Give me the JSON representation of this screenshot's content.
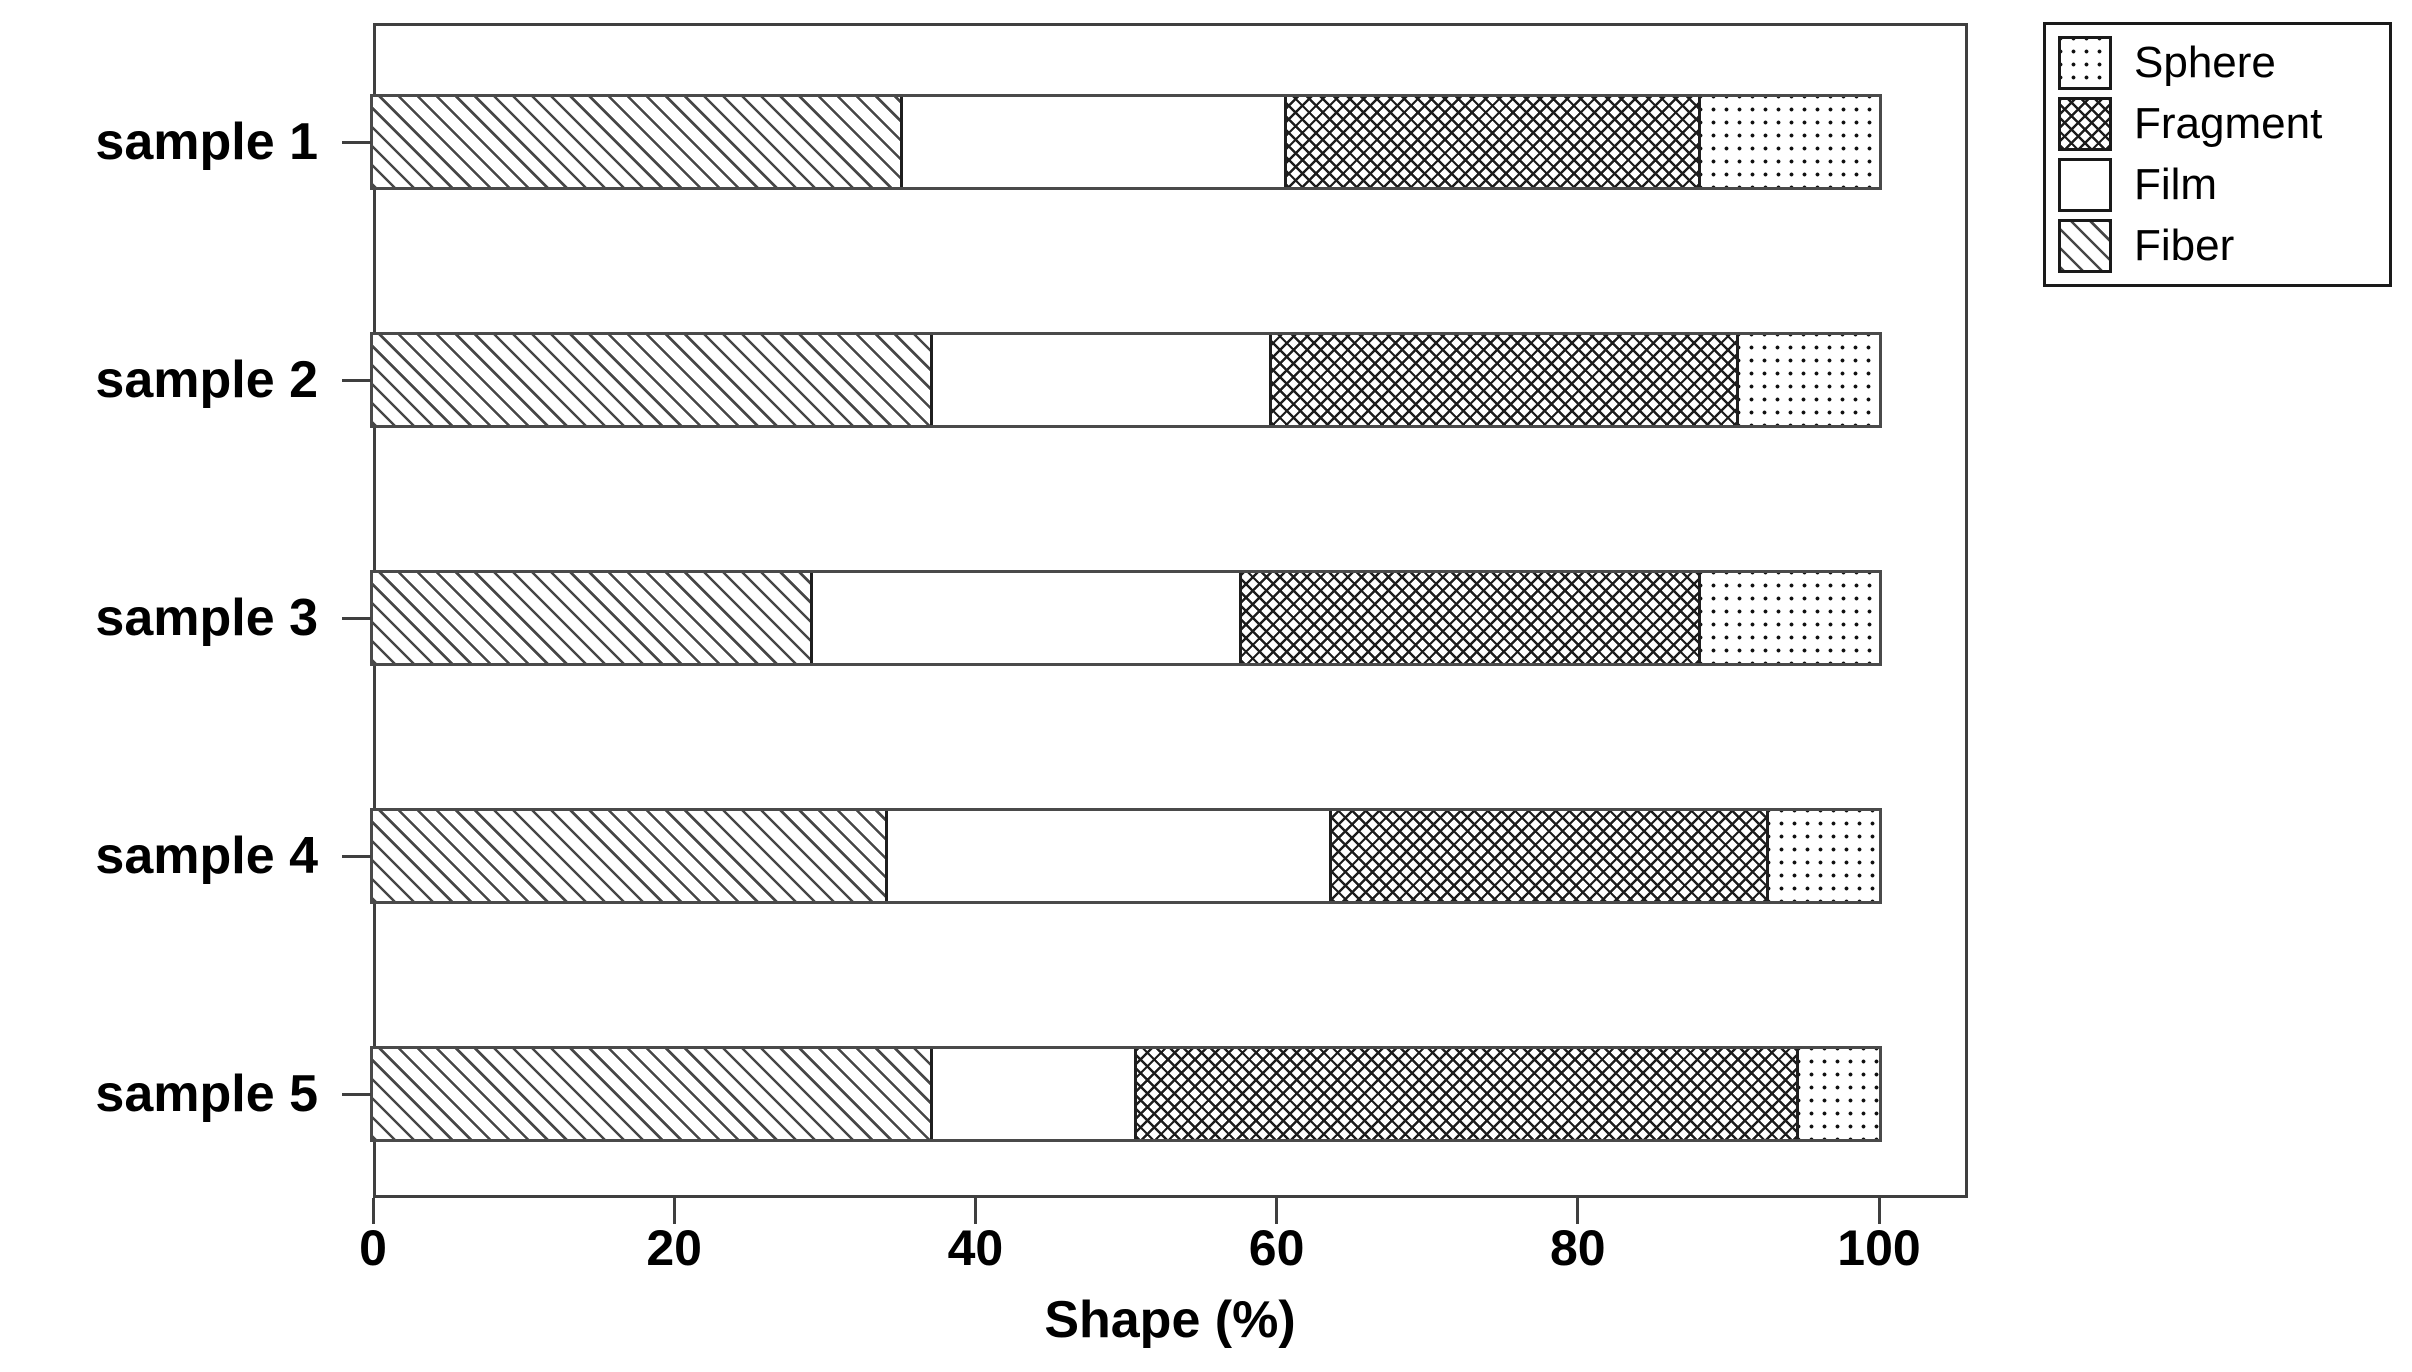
{
  "chart_data": {
    "type": "bar",
    "orientation": "horizontal",
    "stacked": true,
    "title": "",
    "xlabel": "Shape (%)",
    "ylabel": "",
    "categories": [
      "sample 1",
      "sample 2",
      "sample 3",
      "sample 4",
      "sample 5"
    ],
    "series": [
      {
        "name": "Fiber",
        "pattern": "diagonal-hatch",
        "values": [
          35,
          37,
          29,
          34,
          37
        ]
      },
      {
        "name": "Film",
        "pattern": "plain-white",
        "values": [
          25.5,
          22.5,
          28.5,
          29.5,
          13.5
        ]
      },
      {
        "name": "Fragment",
        "pattern": "crosshatch",
        "values": [
          27.5,
          31,
          30.5,
          29,
          44
        ]
      },
      {
        "name": "Sphere",
        "pattern": "dots",
        "values": [
          12,
          9.5,
          12,
          7.5,
          5.5
        ]
      }
    ],
    "x_ticks": [
      0,
      20,
      40,
      60,
      80,
      100
    ],
    "xlim": [
      0,
      106
    ],
    "grid": false,
    "legend": {
      "position": "top-right",
      "entries": [
        {
          "label": "Sphere",
          "pattern": "dots"
        },
        {
          "label": "Fragment",
          "pattern": "crosshatch"
        },
        {
          "label": "Film",
          "pattern": "plain-white"
        },
        {
          "label": "Fiber",
          "pattern": "diagonal-hatch"
        }
      ]
    },
    "colors": {
      "ink": "#000000",
      "background": "#ffffff",
      "axis": "#3f3f3f"
    }
  }
}
